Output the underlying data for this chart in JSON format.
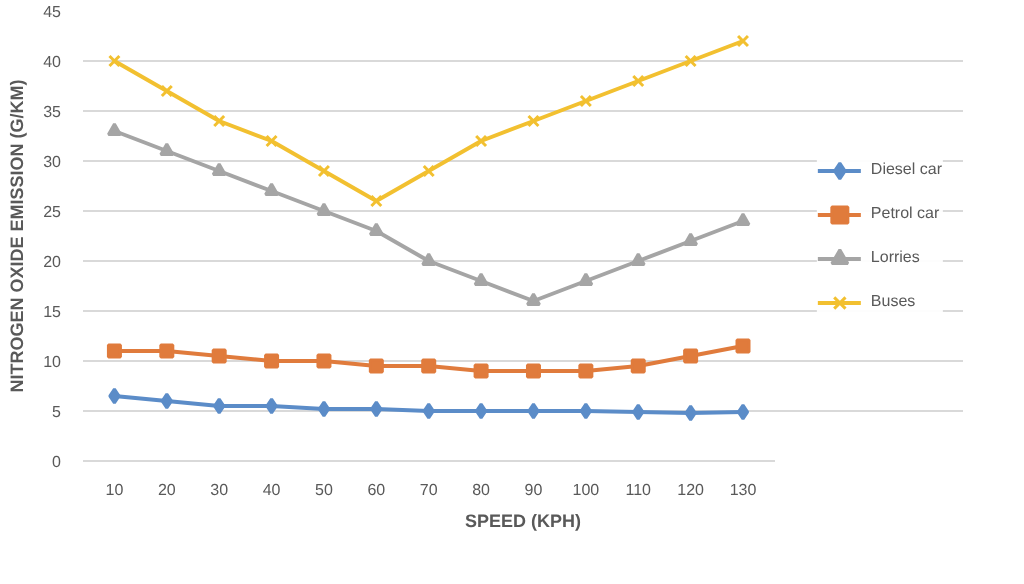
{
  "chart_data": {
    "type": "line",
    "xlabel": "SPEED (KPH)",
    "ylabel": "NITROGEN OXIDE EMISSION (G/KM)",
    "categories": [
      "10",
      "20",
      "30",
      "40",
      "50",
      "60",
      "70",
      "80",
      "90",
      "100",
      "110",
      "120",
      "130"
    ],
    "ylim": [
      0,
      45
    ],
    "yticks": [
      0,
      5,
      10,
      15,
      20,
      25,
      30,
      35,
      40,
      45
    ],
    "grid": "y",
    "legend": "right",
    "series": [
      {
        "name": "Diesel car",
        "color": "#5b8cc8",
        "marker": "diamond",
        "values": [
          6.5,
          6,
          5.5,
          5.5,
          5.2,
          5.2,
          5,
          5,
          5,
          5,
          4.9,
          4.8,
          4.9
        ]
      },
      {
        "name": "Petrol car",
        "color": "#e07b3c",
        "marker": "square",
        "values": [
          11,
          11,
          10.5,
          10,
          10,
          9.5,
          9.5,
          9,
          9,
          9,
          9.5,
          10.5,
          11.5
        ]
      },
      {
        "name": "Lorries",
        "color": "#a5a5a5",
        "marker": "triangle",
        "values": [
          33,
          31,
          29,
          27,
          25,
          23,
          20,
          18,
          16,
          18,
          20,
          22,
          24
        ]
      },
      {
        "name": "Buses",
        "color": "#f2c030",
        "marker": "cross",
        "values": [
          40,
          37,
          34,
          32,
          29,
          26,
          29,
          32,
          34,
          36,
          38,
          40,
          42
        ]
      }
    ]
  }
}
